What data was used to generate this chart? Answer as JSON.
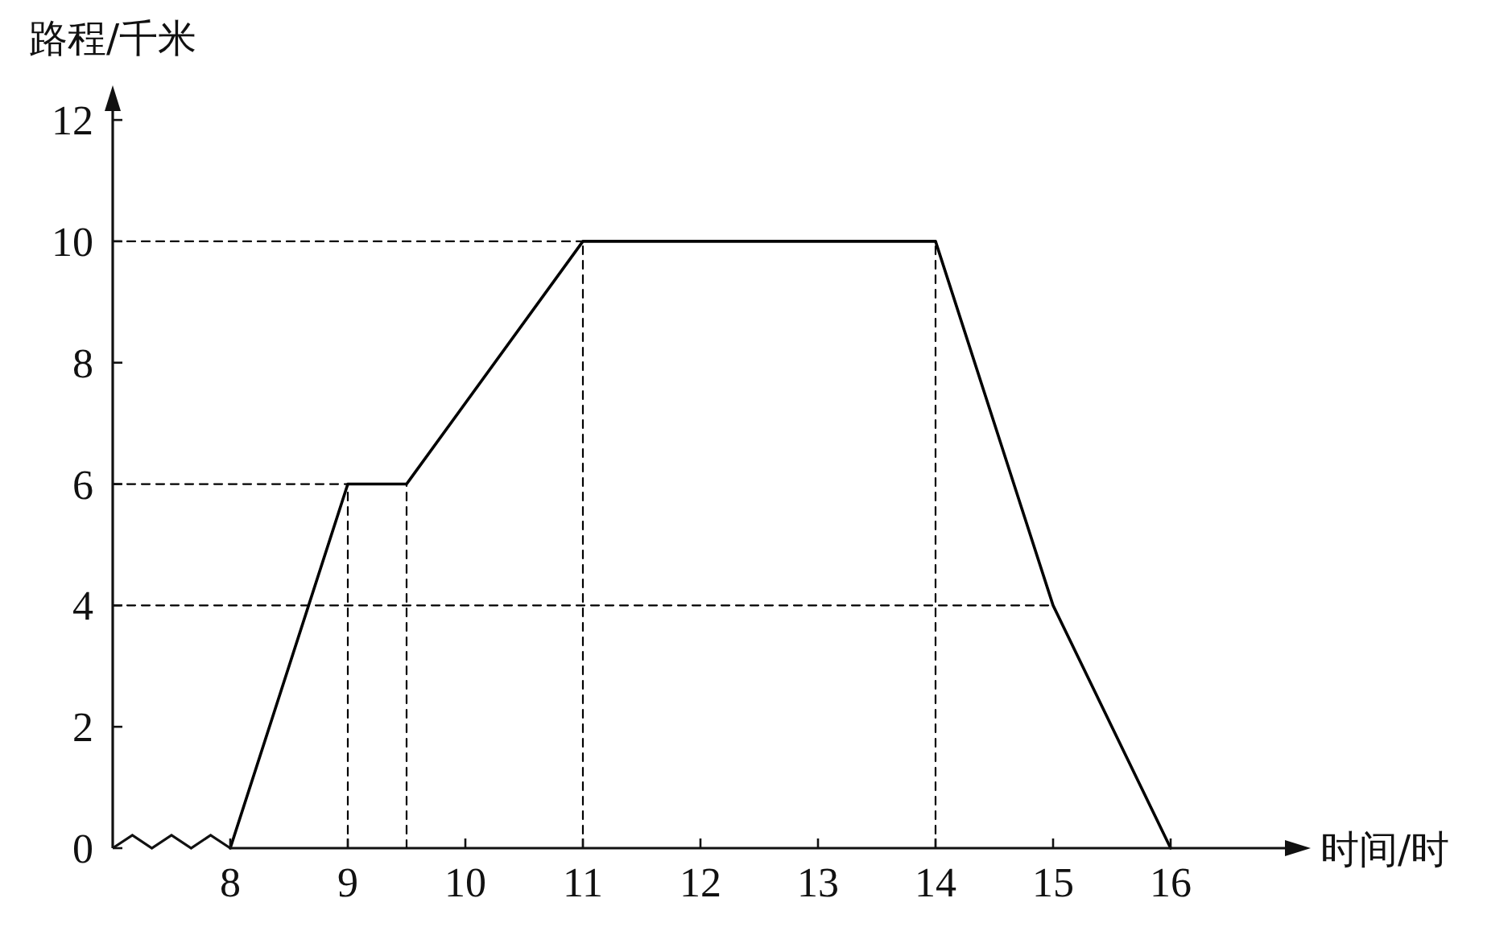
{
  "chart_data": {
    "type": "line",
    "xlabel": "时间/时",
    "ylabel": "路程/千米",
    "xlim": [
      7,
      17
    ],
    "ylim": [
      0,
      12.2
    ],
    "xticks": [
      8,
      9,
      10,
      11,
      12,
      13,
      14,
      15,
      16
    ],
    "yticks": [
      0,
      2,
      4,
      6,
      8,
      10,
      12
    ],
    "series": [
      {
        "color": "#000000",
        "line_style": "solid",
        "x": [
          8,
          9,
          9.5,
          11,
          14,
          15,
          16
        ],
        "values": [
          0,
          6,
          6,
          10,
          10,
          4,
          0
        ]
      },
      {
        "color": "#000000",
        "line_style": "dashed",
        "x": [
          7,
          11
        ],
        "values": [
          10,
          10
        ]
      },
      {
        "color": "#000000",
        "line_style": "dashed",
        "x": [
          7,
          9.5
        ],
        "values": [
          6,
          6
        ]
      },
      {
        "color": "#000000",
        "line_style": "dashed",
        "x": [
          7,
          15
        ],
        "values": [
          4,
          4
        ]
      },
      {
        "color": "#000000",
        "line_style": "dashed",
        "x": [
          9,
          9
        ],
        "values": [
          0,
          6
        ]
      },
      {
        "color": "#000000",
        "line_style": "dashed",
        "x": [
          9.5,
          9.5
        ],
        "values": [
          0,
          6
        ]
      },
      {
        "color": "#000000",
        "line_style": "dashed",
        "x": [
          11,
          11
        ],
        "values": [
          0,
          10
        ]
      },
      {
        "color": "#000000",
        "line_style": "dashed",
        "x": [
          14,
          14
        ],
        "values": [
          0,
          10
        ]
      }
    ]
  }
}
